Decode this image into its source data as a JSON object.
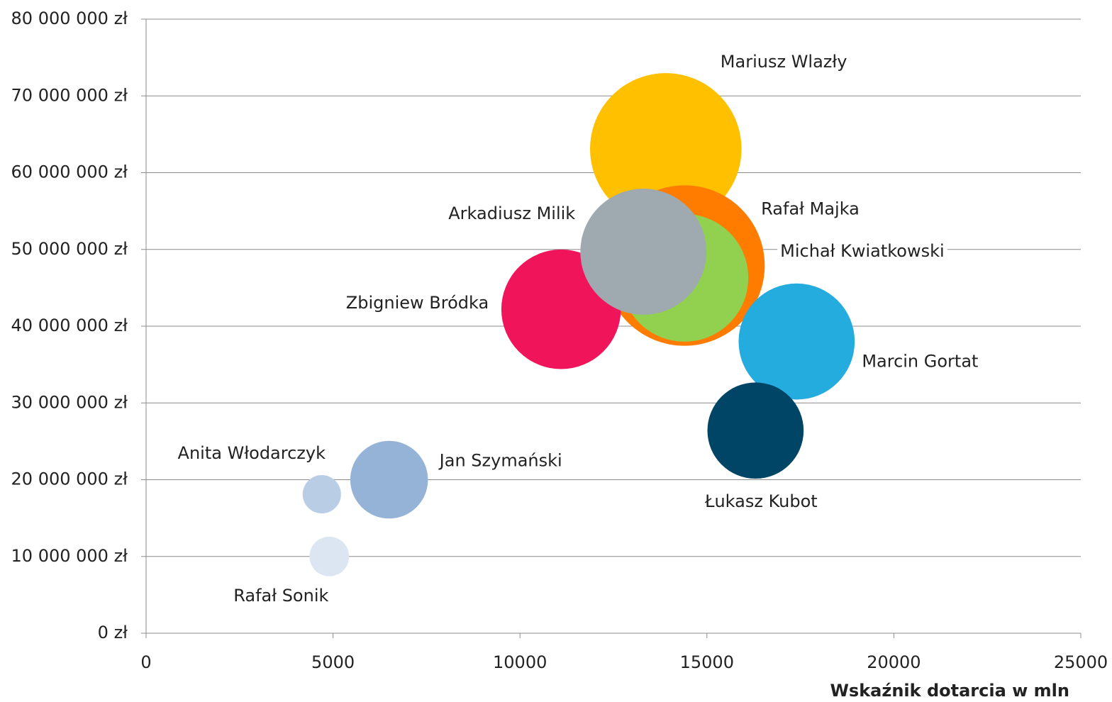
{
  "chart_data": {
    "type": "bubble",
    "x_label": "Wskaźnik dotarcia w mln",
    "xlim": [
      0,
      25000
    ],
    "xticks": [
      0,
      5000,
      10000,
      15000,
      20000,
      25000
    ],
    "ylim": [
      0,
      80000000
    ],
    "yticks": [
      {
        "value": 0,
        "label": "0 zł"
      },
      {
        "value": 10000000,
        "label": "10 000 000 zł"
      },
      {
        "value": 20000000,
        "label": "20 000 000 zł"
      },
      {
        "value": 30000000,
        "label": "30 000 000 zł"
      },
      {
        "value": 40000000,
        "label": "40 000 000 zł"
      },
      {
        "value": 50000000,
        "label": "50 000 000 zł"
      },
      {
        "value": 60000000,
        "label": "60 000 000 zł"
      },
      {
        "value": 70000000,
        "label": "70 000 000 zł"
      },
      {
        "value": 80000000,
        "label": "80 000 000 zł"
      }
    ],
    "grid": true,
    "points": [
      {
        "name": "Mariusz Wlazły",
        "color": "#ffc000",
        "x": 13900,
        "y": 63100000,
        "size": 114
      },
      {
        "name": "Rafał Majka",
        "color": "#ff7c00",
        "x": 14400,
        "y": 47900000,
        "size": 128
      },
      {
        "name": "Michał Kwiatkowski",
        "color": "#92d050",
        "x": 14400,
        "y": 46300000,
        "size": 81
      },
      {
        "name": "Zbigniew Bródka",
        "color": "#f0145a",
        "x": 11100,
        "y": 42200000,
        "size": 71
      },
      {
        "name": "Arkadiusz Milik",
        "color": "#9eaab0",
        "x": 13300,
        "y": 49700000,
        "size": 79
      },
      {
        "name": "Marcin Gortat",
        "color": "#24acdf",
        "x": 17400,
        "y": 38000000,
        "size": 67
      },
      {
        "name": "Łukasz Kubot",
        "color": "#004466",
        "x": 16300,
        "y": 26400000,
        "size": 46
      },
      {
        "name": "Jan Szymański",
        "color": "#95b3d7",
        "x": 6500,
        "y": 20000000,
        "size": 30
      },
      {
        "name": "Anita Włodarczyk",
        "color": "#b9cde5",
        "x": 4700,
        "y": 18100000,
        "size": 7.3
      },
      {
        "name": "Rafał Sonik",
        "color": "#dce6f2",
        "x": 4900,
        "y": 10000000,
        "size": 7.8
      }
    ]
  }
}
